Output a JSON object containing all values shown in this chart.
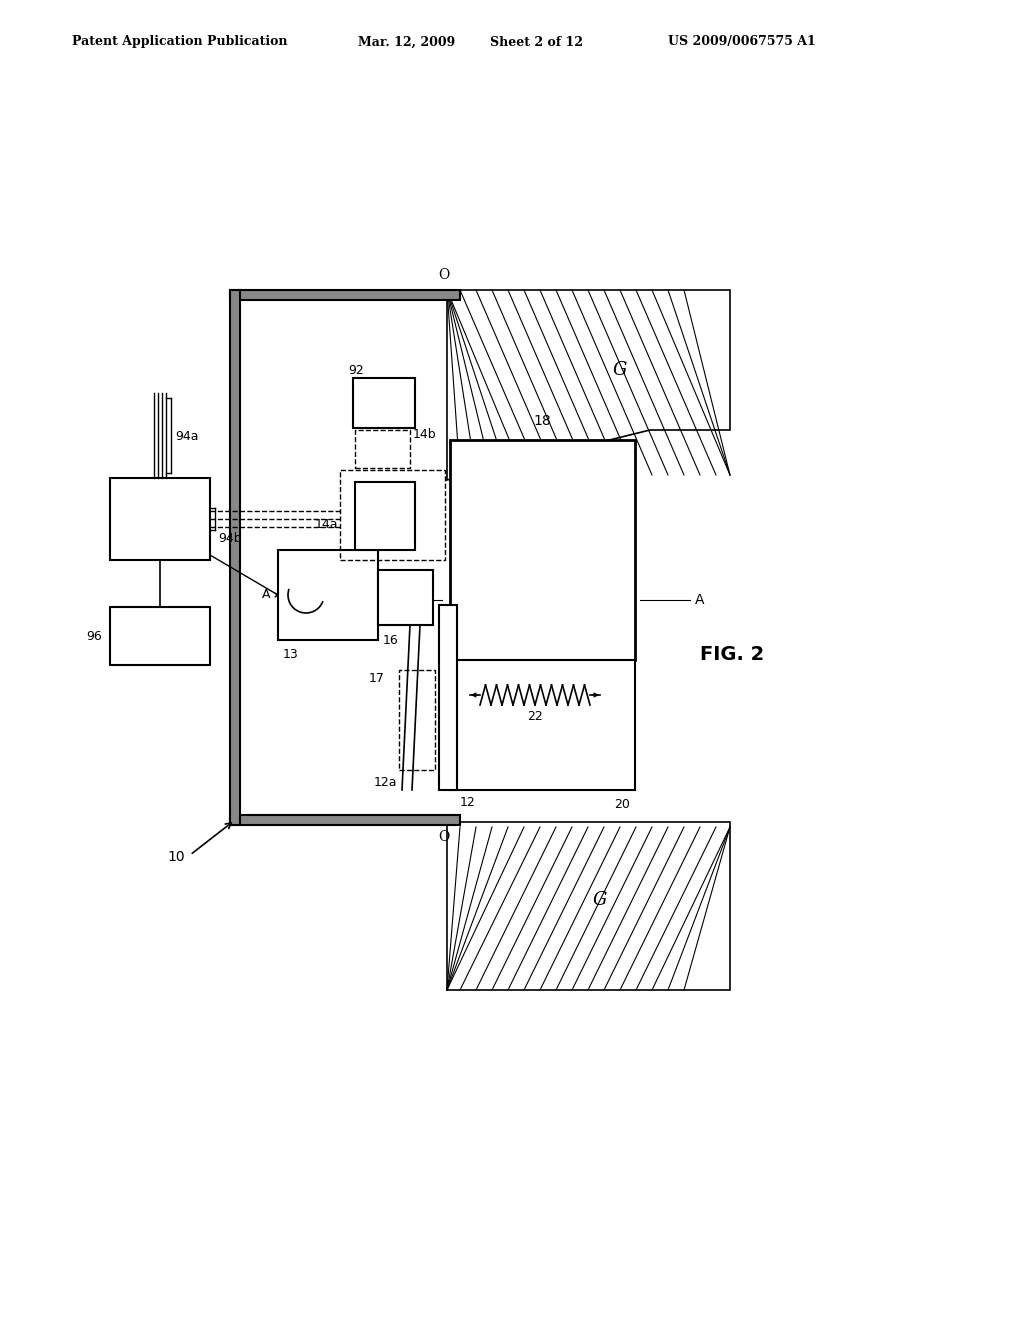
{
  "bg_color": "#ffffff",
  "header_text": "Patent Application Publication",
  "header_date": "Mar. 12, 2009",
  "header_sheet": "Sheet 2 of 12",
  "header_patent": "US 2009/0067575 A1",
  "fig_label": "FIG. 2"
}
